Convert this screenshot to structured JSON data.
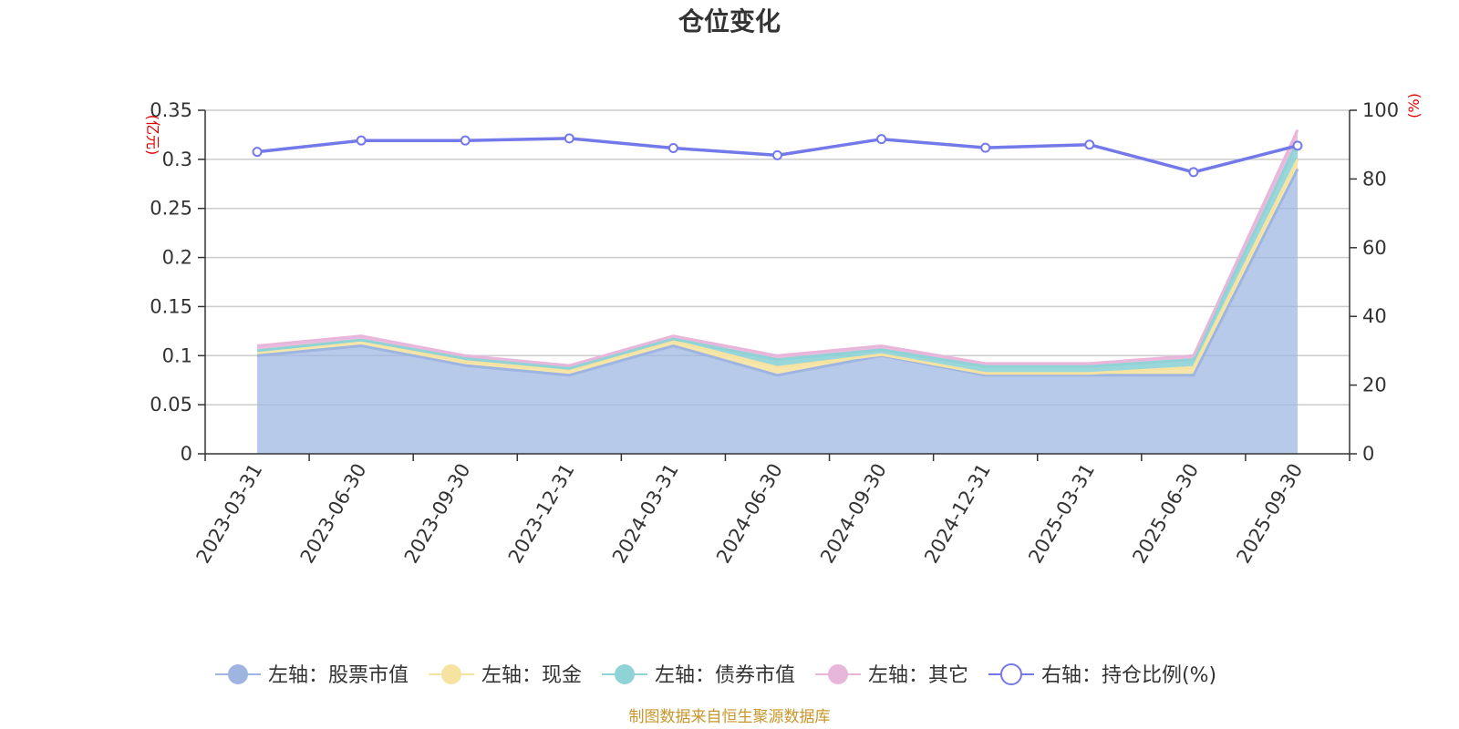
{
  "chart_data": {
    "type": "area",
    "title": "仓位变化",
    "categories": [
      "2023-03-31",
      "2023-06-30",
      "2023-09-30",
      "2023-12-31",
      "2024-03-31",
      "2024-06-30",
      "2024-09-30",
      "2024-12-31",
      "2025-03-31",
      "2025-06-30",
      "2025-09-30"
    ],
    "left_axis": {
      "unit": "(亿元)",
      "ylim": [
        0,
        0.35
      ],
      "ticks": [
        "0",
        "0.05",
        "0.1",
        "0.15",
        "0.2",
        "0.25",
        "0.3",
        "0.35"
      ]
    },
    "right_axis": {
      "unit": "(%)",
      "ylim": [
        0,
        100
      ],
      "ticks": [
        "0",
        "20",
        "40",
        "60",
        "80",
        "100"
      ]
    },
    "stacked_series": [
      {
        "name": "左轴：股票市值",
        "color": "#9db5e0",
        "values": [
          0.1,
          0.11,
          0.09,
          0.08,
          0.11,
          0.08,
          0.1,
          0.08,
          0.08,
          0.08,
          0.29
        ]
      },
      {
        "name": "左轴：现金",
        "color": "#f6e3a1",
        "values": [
          0.005,
          0.006,
          0.004,
          0.005,
          0.005,
          0.008,
          0.001,
          0.002,
          0.002,
          0.008,
          0.01
        ]
      },
      {
        "name": "左轴：债券市值",
        "color": "#8fd3d6",
        "values": [
          0.0,
          0.0,
          0.003,
          0.002,
          0.002,
          0.008,
          0.005,
          0.007,
          0.007,
          0.008,
          0.018
        ]
      },
      {
        "name": "左轴：其它",
        "color": "#e8b6da",
        "values": [
          0.005,
          0.004,
          0.003,
          0.003,
          0.003,
          0.004,
          0.004,
          0.003,
          0.003,
          0.004,
          0.012
        ]
      }
    ],
    "line_series": {
      "name": "右轴：持仓比例(%)",
      "color": "#7479ea",
      "values": [
        87.9,
        91.2,
        91.2,
        91.8,
        89.0,
        86.9,
        91.6,
        89.1,
        90.0,
        82.0,
        89.7
      ]
    },
    "grid": true,
    "legend_position": "bottom"
  },
  "footer": "制图数据来自恒生聚源数据库"
}
